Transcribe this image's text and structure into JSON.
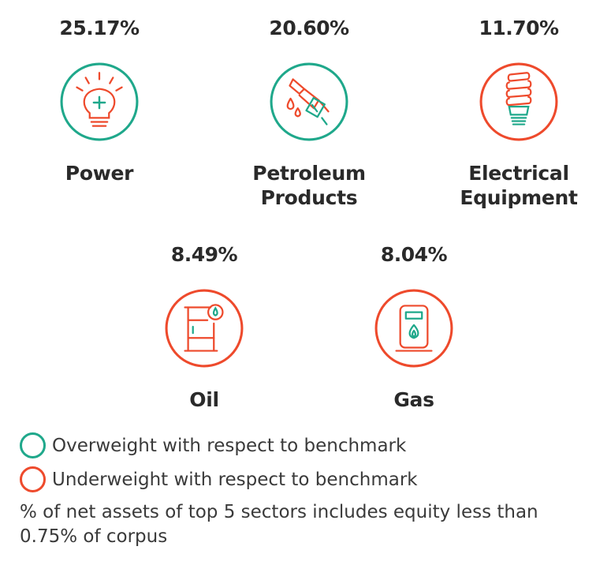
{
  "colors": {
    "overweight": "#1fa88b",
    "underweight": "#ee4a2c"
  },
  "sectors": [
    {
      "pct": "25.17%",
      "name_lines": [
        "Power"
      ],
      "status": "overweight",
      "icon": "lightbulb-icon"
    },
    {
      "pct": "20.60%",
      "name_lines": [
        "Petroleum",
        "Products"
      ],
      "status": "overweight",
      "icon": "fuel-nozzle-icon"
    },
    {
      "pct": "11.70%",
      "name_lines": [
        "Electrical",
        "Equipment"
      ],
      "status": "underweight",
      "icon": "cfl-bulb-icon"
    },
    {
      "pct": "8.49%",
      "name_lines": [
        "Oil"
      ],
      "status": "underweight",
      "icon": "oil-barrel-icon"
    },
    {
      "pct": "8.04%",
      "name_lines": [
        "Gas"
      ],
      "status": "underweight",
      "icon": "gas-pump-icon"
    }
  ],
  "legend": {
    "overweight": "Overweight with respect to benchmark",
    "underweight": "Underweight with respect to benchmark"
  },
  "note": "% of net assets of top 5 sectors includes equity less than 0.75% of corpus"
}
